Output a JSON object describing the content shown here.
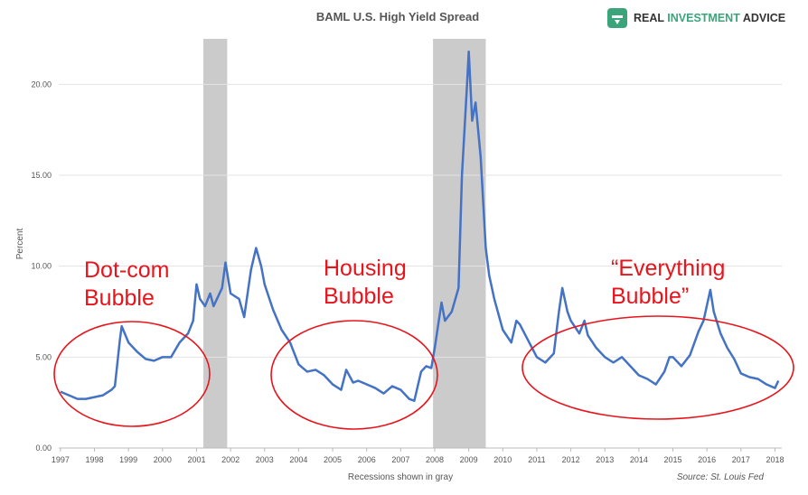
{
  "chart_data": {
    "type": "line",
    "title": "BAML U.S. High Yield Spread",
    "logo": [
      "REAL ",
      "INVESTMENT",
      " ADVICE"
    ],
    "y_label": "Percent",
    "x_label": "Recessions shown in gray",
    "source": "Source: St. Louis Fed",
    "annotations": [
      [
        "Dot-com",
        "Bubble"
      ],
      [
        "Housing",
        "Bubble"
      ],
      [
        "“Everything",
        "Bubble”"
      ]
    ],
    "color": "#4472c4",
    "recession_color": "#cccbcb",
    "recessions": [
      [
        2001.2,
        2001.9
      ],
      [
        2007.95,
        2009.5
      ]
    ],
    "xlim": [
      1996.95,
      2018.2
    ],
    "xticks": [
      1997,
      1998,
      1999,
      2000,
      2001,
      2002,
      2003,
      2004,
      2005,
      2006,
      2007,
      2008,
      2009,
      2010,
      2011,
      2012,
      2013,
      2014,
      2015,
      2016,
      2017,
      2018
    ],
    "ylim": [
      0,
      22.5
    ],
    "yticks": [
      {
        "value": 0,
        "label": "0.00"
      },
      {
        "value": 5,
        "label": "5.00"
      },
      {
        "value": 10,
        "label": "10.00"
      },
      {
        "value": 15,
        "label": "15.00"
      },
      {
        "value": 20,
        "label": "20.00"
      }
    ],
    "grid": true,
    "x": [
      1997.0,
      1997.25,
      1997.5,
      1997.75,
      1998.0,
      1998.25,
      1998.5,
      1998.6,
      1998.75,
      1998.8,
      1999.0,
      1999.25,
      1999.5,
      1999.75,
      2000.0,
      2000.25,
      2000.5,
      2000.75,
      2000.9,
      2001.0,
      2001.1,
      2001.25,
      2001.4,
      2001.5,
      2001.75,
      2001.85,
      2002.0,
      2002.25,
      2002.4,
      2002.5,
      2002.6,
      2002.75,
      2002.9,
      2003.0,
      2003.25,
      2003.5,
      2003.75,
      2004.0,
      2004.25,
      2004.5,
      2004.75,
      2005.0,
      2005.25,
      2005.4,
      2005.6,
      2005.75,
      2006.0,
      2006.25,
      2006.5,
      2006.75,
      2007.0,
      2007.25,
      2007.4,
      2007.6,
      2007.75,
      2007.9,
      2008.0,
      2008.2,
      2008.3,
      2008.5,
      2008.7,
      2008.8,
      2008.95,
      2009.0,
      2009.1,
      2009.2,
      2009.35,
      2009.5,
      2009.6,
      2009.75,
      2010.0,
      2010.25,
      2010.4,
      2010.5,
      2010.75,
      2011.0,
      2011.25,
      2011.5,
      2011.65,
      2011.75,
      2011.9,
      2012.0,
      2012.25,
      2012.4,
      2012.5,
      2012.75,
      2013.0,
      2013.25,
      2013.5,
      2013.75,
      2014.0,
      2014.25,
      2014.5,
      2014.75,
      2014.9,
      2015.0,
      2015.25,
      2015.5,
      2015.75,
      2015.9,
      2016.1,
      2016.2,
      2016.4,
      2016.6,
      2016.8,
      2017.0,
      2017.25,
      2017.5,
      2017.75,
      2018.0,
      2018.1
    ],
    "values": [
      3.1,
      2.9,
      2.7,
      2.7,
      2.8,
      2.9,
      3.2,
      3.4,
      6.0,
      6.7,
      5.8,
      5.3,
      4.9,
      4.8,
      5.0,
      5.0,
      5.8,
      6.3,
      7.0,
      9.0,
      8.2,
      7.8,
      8.5,
      7.8,
      8.8,
      10.2,
      8.5,
      8.2,
      7.2,
      8.5,
      9.8,
      11.0,
      10.0,
      9.0,
      7.6,
      6.5,
      5.8,
      4.6,
      4.2,
      4.3,
      4.0,
      3.5,
      3.2,
      4.3,
      3.6,
      3.7,
      3.5,
      3.3,
      3.0,
      3.4,
      3.2,
      2.7,
      2.6,
      4.2,
      4.5,
      4.4,
      5.5,
      8.0,
      7.0,
      7.5,
      8.8,
      15.0,
      20.0,
      21.8,
      18.0,
      19.0,
      16.0,
      11.0,
      9.5,
      8.2,
      6.5,
      5.8,
      7.0,
      6.8,
      5.9,
      5.0,
      4.7,
      5.2,
      7.5,
      8.8,
      7.5,
      7.0,
      6.3,
      7.0,
      6.2,
      5.5,
      5.0,
      4.7,
      5.0,
      4.5,
      4.0,
      3.8,
      3.5,
      4.2,
      5.0,
      5.0,
      4.5,
      5.1,
      6.4,
      7.0,
      8.7,
      7.5,
      6.3,
      5.5,
      4.9,
      4.1,
      3.9,
      3.8,
      3.5,
      3.3,
      3.7
    ]
  }
}
